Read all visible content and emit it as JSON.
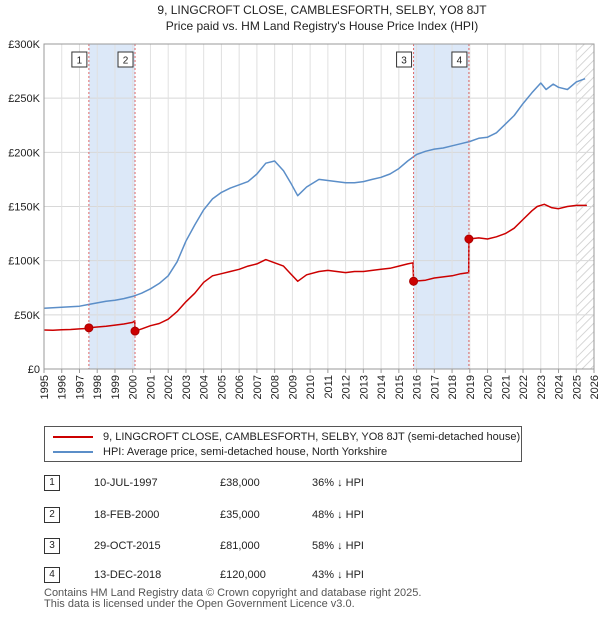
{
  "chart_data": {
    "type": "line",
    "title": "9, LINGCROFT CLOSE, CAMBLESFORTH, SELBY, YO8 8JT",
    "subtitle": "Price paid vs. HM Land Registry's House Price Index (HPI)",
    "xlim": [
      1995,
      2026
    ],
    "ylim": [
      0,
      300000
    ],
    "x_ticks": [
      "1995",
      "1996",
      "1997",
      "1998",
      "1999",
      "2000",
      "2001",
      "2002",
      "2003",
      "2004",
      "2005",
      "2006",
      "2007",
      "2008",
      "2009",
      "2010",
      "2011",
      "2012",
      "2013",
      "2014",
      "2015",
      "2016",
      "2017",
      "2018",
      "2019",
      "2020",
      "2021",
      "2022",
      "2023",
      "2024",
      "2025",
      "2026"
    ],
    "y_ticks": [
      {
        "value": 0,
        "label": "£0"
      },
      {
        "value": 50000,
        "label": "£50K"
      },
      {
        "value": 100000,
        "label": "£100K"
      },
      {
        "value": 150000,
        "label": "£150K"
      },
      {
        "value": 200000,
        "label": "£200K"
      },
      {
        "value": 250000,
        "label": "£250K"
      },
      {
        "value": 300000,
        "label": "£300K"
      }
    ],
    "grid": true,
    "shaded_periods": [
      [
        1997.53,
        2000.13
      ],
      [
        2015.83,
        2018.95
      ]
    ],
    "future_hatch_start": 2025.0,
    "series": [
      {
        "name": "9, LINGCROFT CLOSE, CAMBLESFORTH, SELBY, YO8 8JT (semi-detached house)",
        "color": "#cc0000",
        "x": [
          1995.0,
          1995.5,
          1996.0,
          1996.5,
          1997.0,
          1997.52,
          1997.53,
          1998.0,
          1998.5,
          1999.0,
          1999.5,
          2000.0,
          2000.12,
          2000.13,
          2000.5,
          2001.0,
          2001.5,
          2002.0,
          2002.5,
          2003.0,
          2003.5,
          2004.0,
          2004.5,
          2005.0,
          2005.5,
          2006.0,
          2006.5,
          2007.0,
          2007.5,
          2008.0,
          2008.5,
          2008.9,
          2009.3,
          2009.8,
          2010.5,
          2011.0,
          2011.5,
          2012.0,
          2012.5,
          2013.0,
          2013.5,
          2014.0,
          2014.5,
          2015.0,
          2015.5,
          2015.8,
          2015.83,
          2016.5,
          2017.0,
          2017.5,
          2018.0,
          2018.5,
          2018.94,
          2018.95,
          2019.5,
          2020.0,
          2020.5,
          2021.0,
          2021.5,
          2022.0,
          2022.5,
          2022.8,
          2023.2,
          2023.6,
          2024.0,
          2024.5,
          2025.0,
          2025.6
        ],
        "y": [
          36000,
          35800,
          36200,
          36500,
          37000,
          37500,
          38000,
          38800,
          39500,
          40500,
          41500,
          43000,
          44500,
          35000,
          37000,
          40000,
          42000,
          46000,
          53000,
          62000,
          70000,
          80000,
          86000,
          88000,
          90000,
          92000,
          95000,
          97000,
          101000,
          98000,
          95000,
          88000,
          81000,
          87000,
          90000,
          91000,
          90000,
          89000,
          90000,
          90000,
          91000,
          92000,
          93000,
          95000,
          97000,
          98000,
          81000,
          82000,
          84000,
          85000,
          86000,
          88000,
          89000,
          120000,
          121000,
          120000,
          122000,
          125000,
          130000,
          138000,
          146000,
          150000,
          152000,
          149000,
          148000,
          150000,
          151000,
          151000
        ]
      },
      {
        "name": "HPI: Average price, semi-detached house, North Yorkshire",
        "color": "#5b8ec8",
        "x": [
          1995.0,
          1995.5,
          1996.0,
          1996.5,
          1997.0,
          1997.5,
          1998.0,
          1998.5,
          1999.0,
          1999.5,
          2000.0,
          2000.5,
          2001.0,
          2001.5,
          2002.0,
          2002.5,
          2003.0,
          2003.5,
          2004.0,
          2004.5,
          2005.0,
          2005.5,
          2006.0,
          2006.5,
          2007.0,
          2007.5,
          2008.0,
          2008.5,
          2008.9,
          2009.3,
          2009.8,
          2010.5,
          2011.0,
          2011.5,
          2012.0,
          2012.5,
          2013.0,
          2013.5,
          2014.0,
          2014.5,
          2015.0,
          2015.5,
          2016.0,
          2016.5,
          2017.0,
          2017.5,
          2018.0,
          2018.5,
          2019.0,
          2019.5,
          2020.0,
          2020.5,
          2021.0,
          2021.5,
          2022.0,
          2022.5,
          2023.0,
          2023.3,
          2023.7,
          2024.0,
          2024.5,
          2025.0,
          2025.5
        ],
        "y": [
          56000,
          56500,
          57000,
          57500,
          58000,
          59500,
          61000,
          62500,
          63500,
          65000,
          67000,
          70000,
          74000,
          79000,
          86000,
          99000,
          118000,
          133000,
          147000,
          157000,
          163000,
          167000,
          170000,
          173000,
          180000,
          190000,
          192000,
          183000,
          172000,
          160000,
          168000,
          175000,
          174000,
          173000,
          172000,
          172000,
          173000,
          175000,
          177000,
          180000,
          185000,
          192000,
          198000,
          201000,
          203000,
          204000,
          206000,
          208000,
          210000,
          213000,
          214000,
          218000,
          226000,
          234000,
          245000,
          255000,
          264000,
          258000,
          263000,
          260000,
          258000,
          265000,
          268000
        ]
      }
    ],
    "sales": [
      {
        "num": "1",
        "x": 1997.53,
        "y": 38000
      },
      {
        "num": "2",
        "x": 2000.13,
        "y": 35000
      },
      {
        "num": "3",
        "x": 2015.83,
        "y": 81000
      },
      {
        "num": "4",
        "x": 2018.95,
        "y": 120000
      }
    ]
  },
  "legend": {
    "property_label": "9, LINGCROFT CLOSE, CAMBLESFORTH, SELBY, YO8 8JT (semi-detached house)",
    "hpi_label": "HPI: Average price, semi-detached house, North Yorkshire"
  },
  "transactions": [
    {
      "num": "1",
      "date": "10-JUL-1997",
      "price": "£38,000",
      "hpi": "36% ↓ HPI"
    },
    {
      "num": "2",
      "date": "18-FEB-2000",
      "price": "£35,000",
      "hpi": "48% ↓ HPI"
    },
    {
      "num": "3",
      "date": "29-OCT-2015",
      "price": "£81,000",
      "hpi": "58% ↓ HPI"
    },
    {
      "num": "4",
      "date": "13-DEC-2018",
      "price": "£120,000",
      "hpi": "43% ↓ HPI"
    }
  ],
  "footer": {
    "line1": "Contains HM Land Registry data © Crown copyright and database right 2025.",
    "line2": "This data is licensed under the Open Government Licence v3.0."
  },
  "colors": {
    "property": "#cc0000",
    "hpi": "#5b8ec8",
    "shade": "#dce8f8",
    "marker_line": "#dd6666"
  }
}
